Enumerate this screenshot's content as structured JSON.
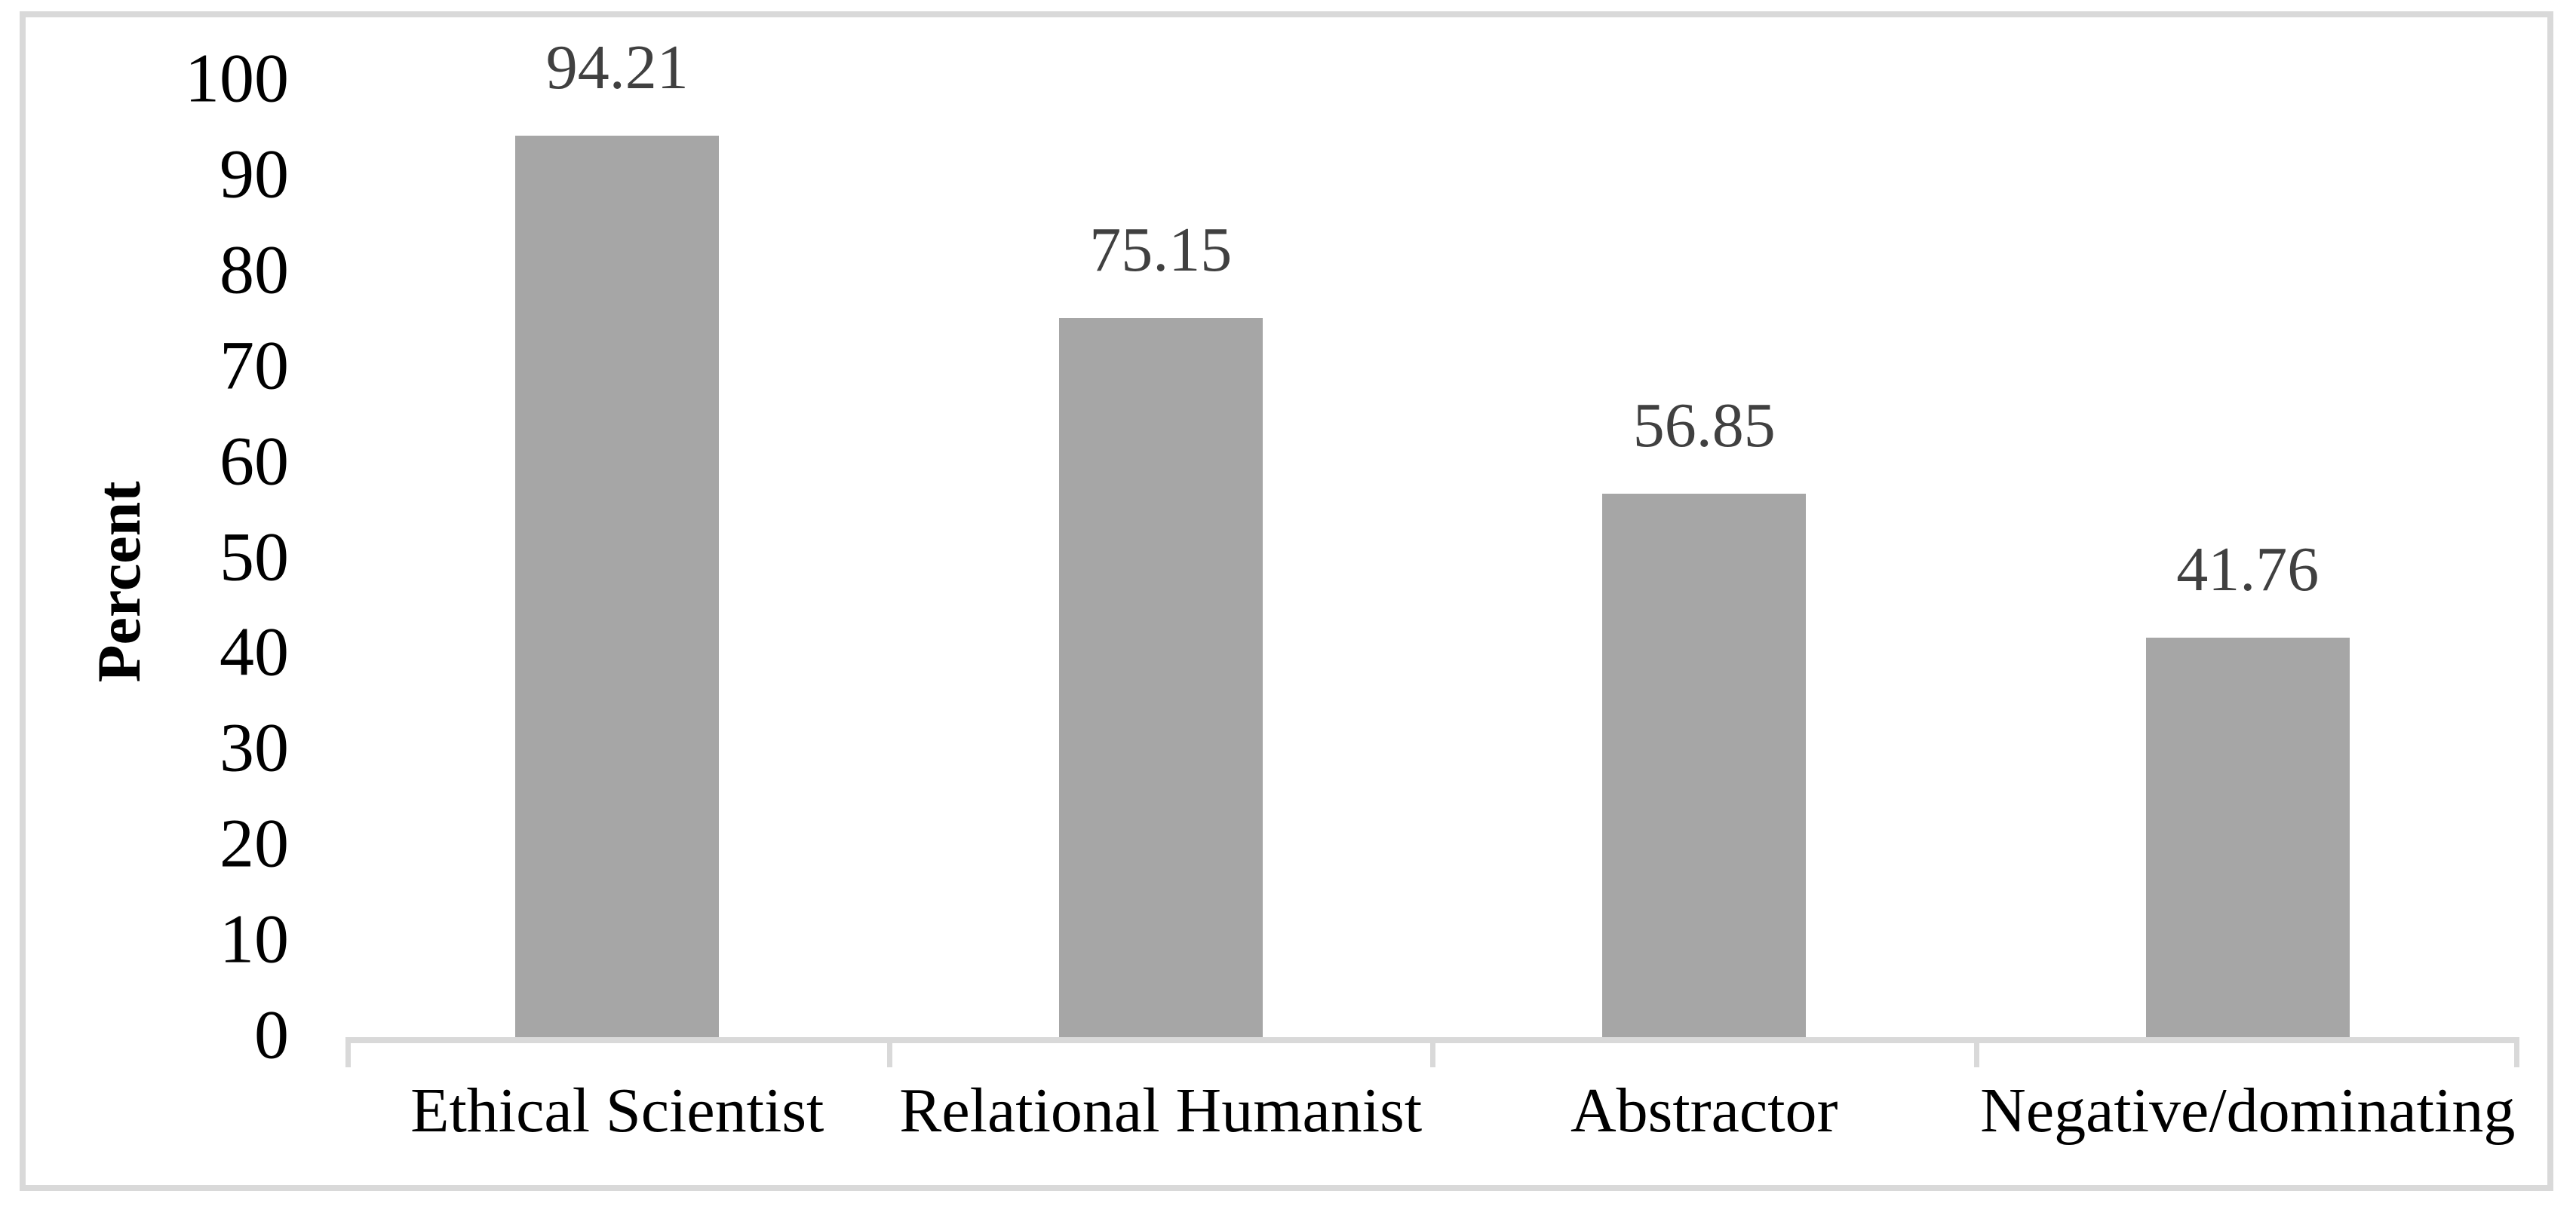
{
  "chart_data": {
    "type": "bar",
    "categories": [
      "Ethical Scientist",
      "Relational Humanist",
      "Abstractor",
      "Negative/dominating"
    ],
    "values": [
      94.21,
      75.15,
      56.85,
      41.76
    ],
    "value_labels": [
      "94.21",
      "75.15",
      "56.85",
      "41.76"
    ],
    "title": "",
    "xlabel": "",
    "ylabel": "Percent",
    "ylim": [
      0,
      100
    ],
    "yticks": [
      0,
      10,
      20,
      30,
      40,
      50,
      60,
      70,
      80,
      90,
      100
    ],
    "grid": false,
    "legend_position": "none",
    "colors": {
      "bar": "#A6A6A6",
      "axis": "#D9D9D9",
      "frame": "#D9D9D9",
      "value_label": "#404040",
      "tick_label": "#000000",
      "category_label": "#000000",
      "background": "#FFFFFF"
    }
  }
}
